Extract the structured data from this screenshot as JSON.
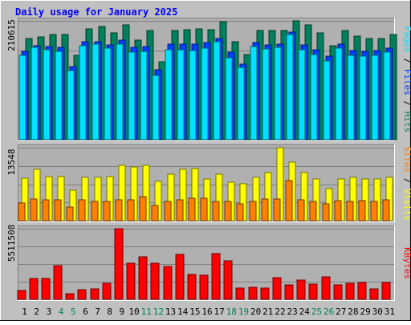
{
  "chart_data": {
    "type": "bar",
    "title": "Daily usage for January 2025",
    "days": [
      "1",
      "2",
      "3",
      "4",
      "5",
      "6",
      "7",
      "8",
      "9",
      "10",
      "11",
      "12",
      "13",
      "14",
      "15",
      "16",
      "17",
      "18",
      "19",
      "20",
      "21",
      "22",
      "23",
      "24",
      "25",
      "26",
      "27",
      "28",
      "29",
      "30",
      "31"
    ],
    "weekend_days": [
      "4",
      "5",
      "11",
      "12",
      "18",
      "19",
      "25",
      "26"
    ],
    "panels": [
      {
        "id": "hits_files_pages",
        "max_label": "210615",
        "max_value": 210615,
        "series": [
          {
            "name": "Hits",
            "color": "#00805c",
            "values": [
              179000,
              182000,
              187000,
              187000,
              149000,
              196000,
              201000,
              189000,
              203000,
              176000,
              193000,
              138000,
              193000,
              195000,
              196000,
              195000,
              209000,
              174000,
              151000,
              194000,
              194000,
              194000,
              210615,
              203000,
              189000,
              166000,
              193000,
              183000,
              180000,
              180000,
              186000
            ]
          },
          {
            "name": "Files",
            "color": "#0040ff",
            "values": [
              156000,
              167000,
              165000,
              163000,
              130000,
              174000,
              174000,
              168000,
              177000,
              163000,
              165000,
              124000,
              170000,
              170000,
              170000,
              172000,
              180000,
              155000,
              134000,
              172000,
              168000,
              169000,
              191000,
              168000,
              159000,
              148000,
              169000,
              158000,
              156000,
              158000,
              162000
            ]
          },
          {
            "name": "Pages",
            "color": "#00e0ff",
            "values": [
              150000,
              163000,
              160000,
              157000,
              123000,
              167000,
              169000,
              162000,
              170000,
              155000,
              156000,
              114000,
              160000,
              160000,
              158000,
              162000,
              173000,
              145000,
              128000,
              165000,
              161000,
              163000,
              187000,
              160000,
              151000,
              140000,
              162000,
              150000,
              148000,
              150000,
              155000
            ]
          }
        ]
      },
      {
        "id": "visits_sites",
        "max_label": "13548",
        "max_value": 13548,
        "series": [
          {
            "name": "Visits",
            "color": "#ffff00",
            "values": [
              7900,
              9500,
              8200,
              8200,
              5700,
              8000,
              8000,
              8200,
              10300,
              10000,
              10300,
              7300,
              8600,
              9500,
              9700,
              7700,
              8700,
              7100,
              6900,
              8100,
              9000,
              13548,
              10800,
              8900,
              7800,
              5900,
              7800,
              8000,
              7800,
              7800,
              8000
            ]
          },
          {
            "name": "Sites",
            "color": "#ff8000",
            "values": [
              3300,
              4000,
              3800,
              3800,
              2600,
              3800,
              3600,
              3600,
              3800,
              3800,
              4400,
              2900,
              3600,
              3900,
              4100,
              4200,
              3600,
              3500,
              3200,
              3500,
              4000,
              4000,
              7400,
              3800,
              3600,
              3100,
              3700,
              3600,
              3700,
              3500,
              3800
            ]
          }
        ]
      },
      {
        "id": "kbytes",
        "max_label": "5511508",
        "max_value": 5511508,
        "series": [
          {
            "name": "KBytes",
            "color": "#ff0000",
            "values": [
              700000,
              1600000,
              1650000,
              2650000,
              460000,
              770000,
              830000,
              1250000,
              5511508,
              2800000,
              3300000,
              2800000,
              2550000,
              3500000,
              1950000,
              1850000,
              3600000,
              3000000,
              850000,
              920000,
              880000,
              1670000,
              1110000,
              1520000,
              1170000,
              1750000,
              1110000,
              1250000,
              1300000,
              830000,
              1310000
            ]
          }
        ]
      }
    ]
  }
}
